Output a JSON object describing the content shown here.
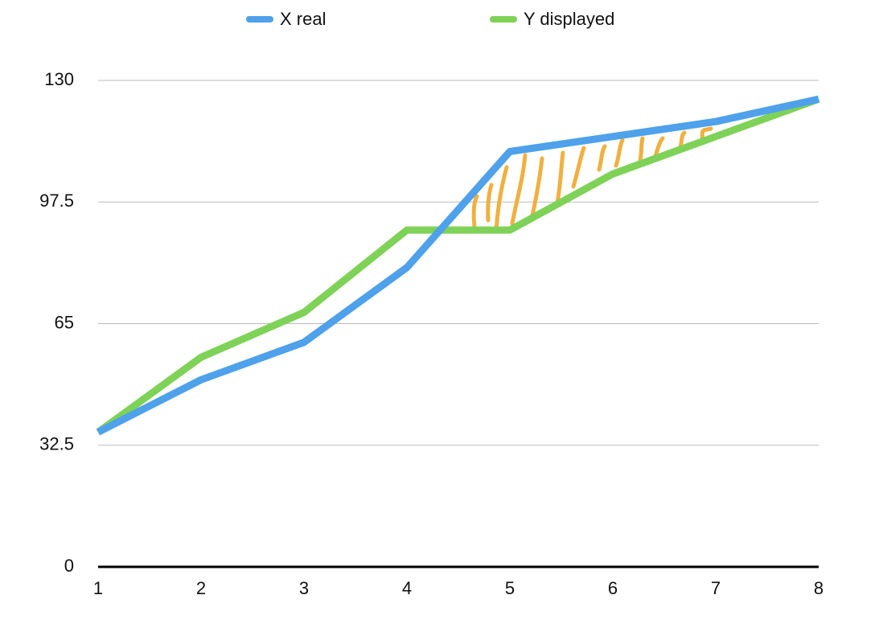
{
  "chart_data": {
    "type": "line",
    "x": [
      1,
      2,
      3,
      4,
      5,
      6,
      7,
      8
    ],
    "series": [
      {
        "name": "X real",
        "color": "#4ea1ea",
        "values": [
          36,
          50,
          60,
          80,
          111,
          115,
          119,
          125
        ]
      },
      {
        "name": "Y displayed",
        "color": "#7ed257",
        "values": [
          36,
          56,
          68,
          90,
          90,
          105,
          115,
          125
        ]
      }
    ],
    "xlim": [
      1,
      8
    ],
    "xticks": [
      1,
      2,
      3,
      4,
      5,
      6,
      7,
      8
    ],
    "ylim": [
      0,
      130
    ],
    "yticks": [
      0,
      32.5,
      65,
      97.5,
      130
    ],
    "grid": true,
    "legend": "top"
  }
}
